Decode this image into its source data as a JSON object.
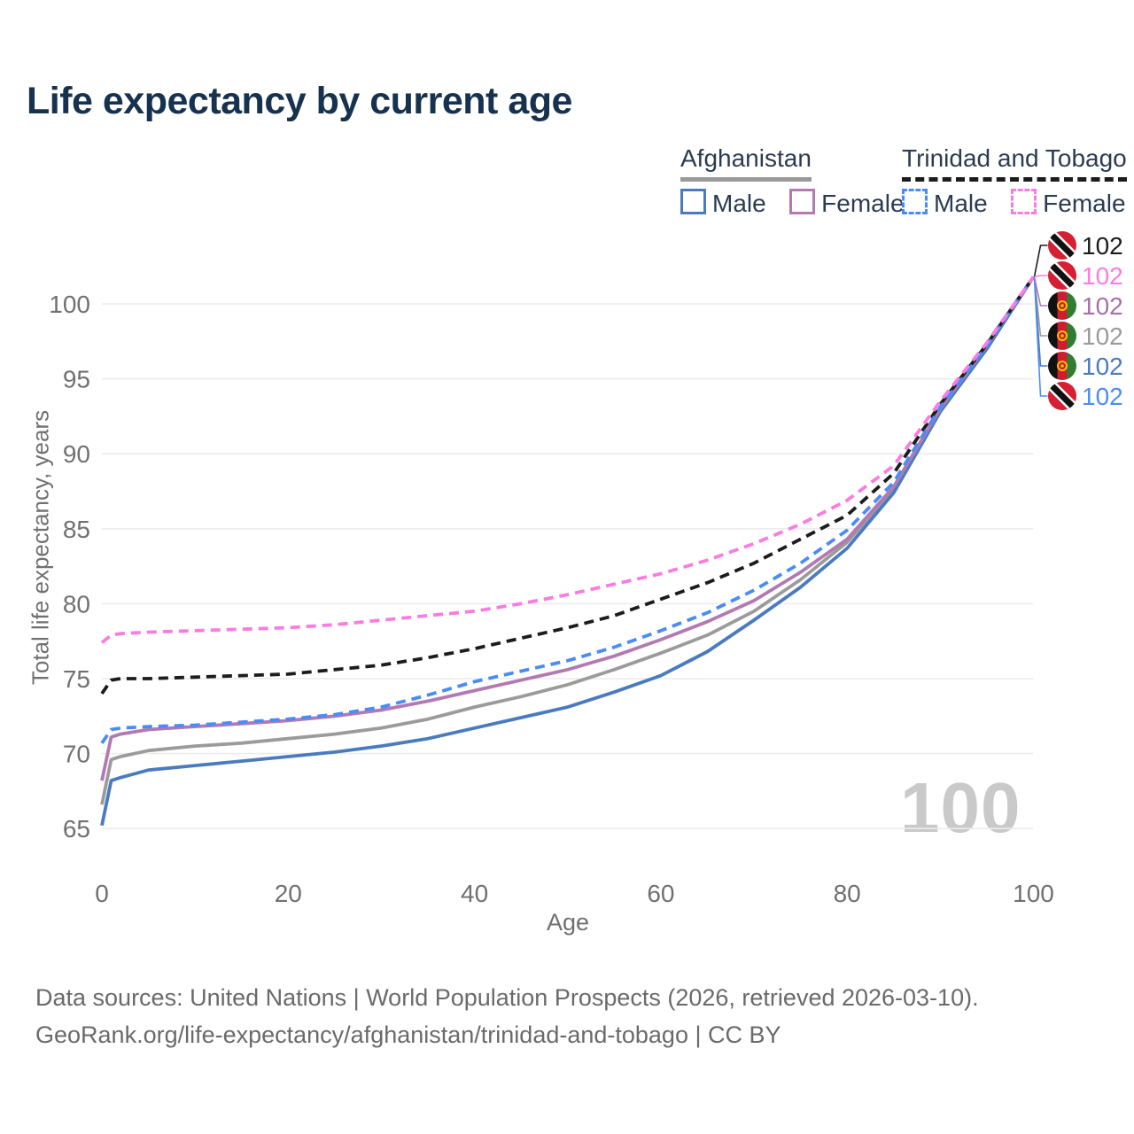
{
  "title": "Life expectancy by current age",
  "watermark": "100",
  "footer": {
    "line1": "Data sources: United Nations | World Population Prospects (2026, retrieved 2026-03-10).",
    "line2": "GeoRank.org/life-expectancy/afghanistan/trinidad-and-tobago | CC BY"
  },
  "colors": {
    "title_text": "#16324f",
    "legend_text": "#2b3b52",
    "axis_text": "#707070",
    "grid": "#ececec",
    "watermark": "#c9c9c9",
    "footer_text": "#6a6a6a"
  },
  "legend": {
    "groups": [
      {
        "label": "Afghanistan",
        "line_style": "solid",
        "underline_color": "#999999",
        "items": [
          {
            "label": "Male",
            "color": "#4a7bbf"
          },
          {
            "label": "Female",
            "color": "#b279b2"
          }
        ]
      },
      {
        "label": "Trinidad and Tobago",
        "line_style": "dashed",
        "underline_color": "#1c1c1c",
        "items": [
          {
            "label": "Male",
            "color": "#4a8cf7"
          },
          {
            "label": "Female",
            "color": "#fb7ce0"
          }
        ]
      }
    ]
  },
  "chart_data": {
    "type": "line",
    "title": "Life expectancy by current age",
    "xlabel": "Age",
    "ylabel": "Total life expectancy, years",
    "xlim": [
      0,
      100
    ],
    "ylim": [
      65,
      102
    ],
    "x_ticks": [
      0,
      20,
      40,
      60,
      80,
      100
    ],
    "y_ticks": [
      65,
      70,
      75,
      80,
      85,
      90,
      95,
      100
    ],
    "grid": "horizontal",
    "legend_position": "top-right",
    "end_age": 100,
    "series": [
      {
        "name": "Afghanistan (both sexes)",
        "color": "#9b9b9b",
        "dash": "solid",
        "flag": "af",
        "row": 3,
        "end_label": "102",
        "label_color": "#9b9b9b",
        "points": [
          [
            0,
            66.6
          ],
          [
            1,
            69.6
          ],
          [
            2,
            69.8
          ],
          [
            5,
            70.2
          ],
          [
            10,
            70.5
          ],
          [
            15,
            70.7
          ],
          [
            20,
            71.0
          ],
          [
            25,
            71.3
          ],
          [
            30,
            71.7
          ],
          [
            35,
            72.3
          ],
          [
            40,
            73.1
          ],
          [
            45,
            73.8
          ],
          [
            50,
            74.6
          ],
          [
            55,
            75.6
          ],
          [
            60,
            76.7
          ],
          [
            65,
            77.9
          ],
          [
            70,
            79.5
          ],
          [
            75,
            81.6
          ],
          [
            80,
            84.1
          ],
          [
            85,
            87.6
          ],
          [
            90,
            92.9
          ],
          [
            95,
            97.1
          ],
          [
            100,
            101.8
          ]
        ]
      },
      {
        "name": "Afghanistan Male",
        "color": "#4a7bbf",
        "dash": "solid",
        "flag": "af",
        "row": 4,
        "end_label": "102",
        "label_color": "#4a7bbf",
        "points": [
          [
            0,
            65.2
          ],
          [
            1,
            68.2
          ],
          [
            2,
            68.4
          ],
          [
            5,
            68.9
          ],
          [
            10,
            69.2
          ],
          [
            15,
            69.5
          ],
          [
            20,
            69.8
          ],
          [
            25,
            70.1
          ],
          [
            30,
            70.5
          ],
          [
            35,
            71.0
          ],
          [
            40,
            71.7
          ],
          [
            45,
            72.4
          ],
          [
            50,
            73.1
          ],
          [
            55,
            74.1
          ],
          [
            60,
            75.2
          ],
          [
            65,
            76.8
          ],
          [
            70,
            78.9
          ],
          [
            75,
            81.1
          ],
          [
            80,
            83.7
          ],
          [
            85,
            87.4
          ],
          [
            90,
            92.8
          ],
          [
            95,
            97.0
          ],
          [
            100,
            101.8
          ]
        ]
      },
      {
        "name": "Afghanistan Female",
        "color": "#b279b2",
        "dash": "solid",
        "flag": "af",
        "row": 2,
        "end_label": "102",
        "label_color": "#a86fa8",
        "points": [
          [
            0,
            68.2
          ],
          [
            1,
            71.1
          ],
          [
            2,
            71.3
          ],
          [
            5,
            71.6
          ],
          [
            10,
            71.8
          ],
          [
            15,
            72.0
          ],
          [
            20,
            72.2
          ],
          [
            25,
            72.5
          ],
          [
            30,
            72.9
          ],
          [
            35,
            73.5
          ],
          [
            40,
            74.2
          ],
          [
            45,
            74.9
          ],
          [
            50,
            75.6
          ],
          [
            55,
            76.5
          ],
          [
            60,
            77.6
          ],
          [
            65,
            78.8
          ],
          [
            70,
            80.2
          ],
          [
            75,
            82.1
          ],
          [
            80,
            84.3
          ],
          [
            85,
            87.8
          ],
          [
            90,
            93.0
          ],
          [
            95,
            97.2
          ],
          [
            100,
            101.8
          ]
        ]
      },
      {
        "name": "Trinidad and Tobago (both sexes)",
        "color": "#1c1c1c",
        "dash": "dashed",
        "flag": "tt",
        "row": 0,
        "end_label": "102",
        "label_color": "#1c1c1c",
        "points": [
          [
            0,
            74.0
          ],
          [
            1,
            74.9
          ],
          [
            2,
            75.0
          ],
          [
            5,
            75.0
          ],
          [
            10,
            75.1
          ],
          [
            15,
            75.2
          ],
          [
            20,
            75.3
          ],
          [
            25,
            75.6
          ],
          [
            30,
            75.9
          ],
          [
            35,
            76.4
          ],
          [
            40,
            77.0
          ],
          [
            45,
            77.7
          ],
          [
            50,
            78.4
          ],
          [
            55,
            79.2
          ],
          [
            60,
            80.3
          ],
          [
            65,
            81.4
          ],
          [
            70,
            82.7
          ],
          [
            75,
            84.3
          ],
          [
            80,
            85.9
          ],
          [
            85,
            88.7
          ],
          [
            90,
            93.3
          ],
          [
            95,
            97.3
          ],
          [
            100,
            101.8
          ]
        ]
      },
      {
        "name": "Trinidad and Tobago Male",
        "color": "#4a8cf7",
        "dash": "dashed",
        "flag": "tt",
        "row": 5,
        "end_label": "102",
        "label_color": "#4a8cf7",
        "points": [
          [
            0,
            70.7
          ],
          [
            1,
            71.6
          ],
          [
            2,
            71.7
          ],
          [
            5,
            71.8
          ],
          [
            10,
            71.9
          ],
          [
            15,
            72.1
          ],
          [
            20,
            72.3
          ],
          [
            25,
            72.6
          ],
          [
            30,
            73.1
          ],
          [
            35,
            73.9
          ],
          [
            40,
            74.8
          ],
          [
            45,
            75.5
          ],
          [
            50,
            76.2
          ],
          [
            55,
            77.1
          ],
          [
            60,
            78.2
          ],
          [
            65,
            79.4
          ],
          [
            70,
            80.9
          ],
          [
            75,
            82.7
          ],
          [
            80,
            84.9
          ],
          [
            85,
            88.1
          ],
          [
            90,
            93.1
          ],
          [
            95,
            97.2
          ],
          [
            100,
            101.8
          ]
        ]
      },
      {
        "name": "Trinidad and Tobago Female",
        "color": "#fb7ce0",
        "dash": "dashed",
        "flag": "tt",
        "row": 1,
        "end_label": "102",
        "label_color": "#fb7ce0",
        "points": [
          [
            0,
            77.4
          ],
          [
            1,
            77.9
          ],
          [
            2,
            78.0
          ],
          [
            5,
            78.1
          ],
          [
            10,
            78.2
          ],
          [
            15,
            78.3
          ],
          [
            20,
            78.4
          ],
          [
            25,
            78.6
          ],
          [
            30,
            78.9
          ],
          [
            35,
            79.2
          ],
          [
            40,
            79.5
          ],
          [
            45,
            80.0
          ],
          [
            50,
            80.6
          ],
          [
            55,
            81.3
          ],
          [
            60,
            82.0
          ],
          [
            65,
            82.9
          ],
          [
            70,
            84.0
          ],
          [
            75,
            85.3
          ],
          [
            80,
            86.9
          ],
          [
            85,
            89.2
          ],
          [
            90,
            93.5
          ],
          [
            95,
            97.4
          ],
          [
            100,
            101.8
          ]
        ]
      }
    ]
  }
}
